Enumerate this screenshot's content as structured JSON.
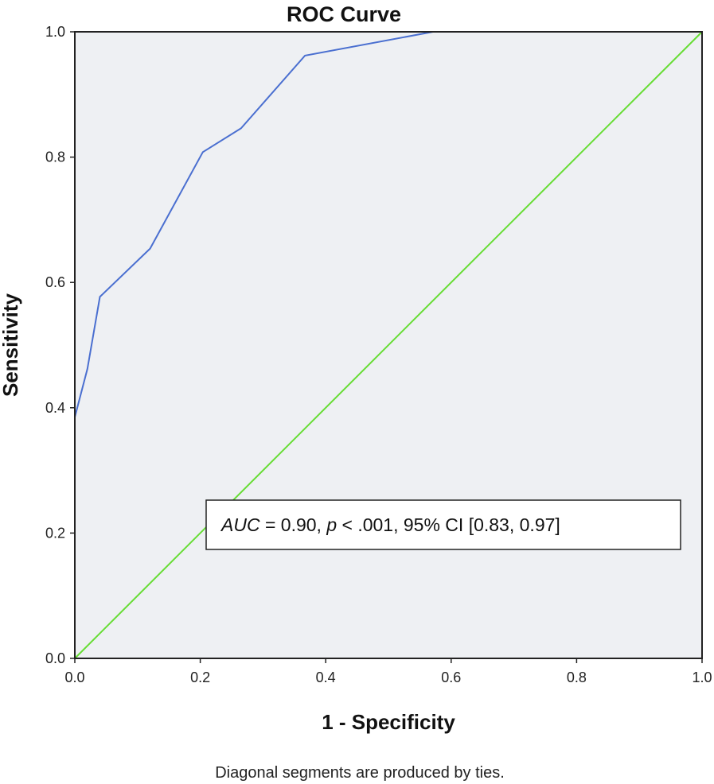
{
  "chart_data": {
    "type": "line",
    "title": "ROC Curve",
    "xlabel": "1 - Specificity",
    "ylabel": "Sensitivity",
    "xlim": [
      0,
      1
    ],
    "ylim": [
      0,
      1
    ],
    "x_ticks": [
      "0.0",
      "0.2",
      "0.4",
      "0.6",
      "0.8",
      "1.0"
    ],
    "y_ticks": [
      "0.0",
      "0.2",
      "0.4",
      "0.6",
      "0.8",
      "1.0"
    ],
    "grid": false,
    "series": [
      {
        "color": "#4a6fd0",
        "points": [
          [
            0.0,
            0.0
          ],
          [
            0.0,
            0.385
          ],
          [
            0.02,
            0.462
          ],
          [
            0.04,
            0.577
          ],
          [
            0.12,
            0.654
          ],
          [
            0.204,
            0.808
          ],
          [
            0.265,
            0.846
          ],
          [
            0.367,
            0.962
          ],
          [
            0.571,
            1.0
          ],
          [
            1.0,
            1.0
          ]
        ]
      },
      {
        "color": "#66dd33",
        "points": [
          [
            0.0,
            0.0
          ],
          [
            1.0,
            1.0
          ]
        ]
      }
    ],
    "annotation": {
      "auc_label": "AUC",
      "auc_rest": " = 0.90, ",
      "p_label": "p",
      "p_rest": " < .001, 95% CI [0.83, 0.97]"
    },
    "footnote": "Diagonal segments are produced by ties.",
    "colors": {
      "plot_background": "#eef0f3",
      "frame": "#222222"
    }
  }
}
